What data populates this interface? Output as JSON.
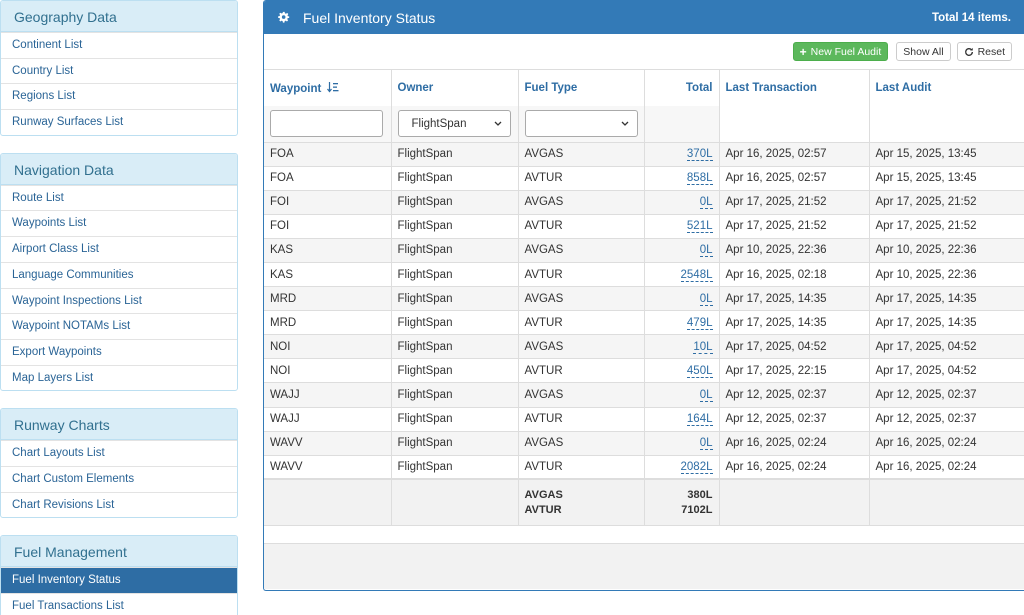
{
  "sidebar": {
    "geography": {
      "heading": "Geography Data",
      "items": [
        "Continent List",
        "Country List",
        "Regions List",
        "Runway Surfaces List"
      ]
    },
    "navigation": {
      "heading": "Navigation Data",
      "items": [
        "Route List",
        "Waypoints List",
        "Airport Class List",
        "Language Communities",
        "Waypoint Inspections List",
        "Waypoint NOTAMs List",
        "Export Waypoints",
        "Map Layers List"
      ]
    },
    "runway": {
      "heading": "Runway Charts",
      "items": [
        "Chart Layouts List",
        "Chart Custom Elements",
        "Chart Revisions List"
      ]
    },
    "fuel": {
      "heading": "Fuel Management",
      "items": [
        "Fuel Inventory Status",
        "Fuel Transactions List"
      ]
    }
  },
  "main": {
    "title": "Fuel Inventory Status",
    "total": "Total 14 items.",
    "toolbar": {
      "new_audit": "New Fuel Audit",
      "show_all": "Show All",
      "reset": "Reset"
    },
    "columns": {
      "waypoint": "Waypoint",
      "owner": "Owner",
      "fuel_type": "Fuel Type",
      "total": "Total",
      "last_transaction": "Last Transaction",
      "last_audit": "Last Audit"
    },
    "filters": {
      "owner_selected": "FlightSpan"
    },
    "rows": [
      {
        "waypoint": "FOA",
        "owner": "FlightSpan",
        "fuel_type": "AVGAS",
        "total": "370L",
        "last_transaction": "Apr 16, 2025, 02:57",
        "last_audit": "Apr 15, 2025, 13:45"
      },
      {
        "waypoint": "FOA",
        "owner": "FlightSpan",
        "fuel_type": "AVTUR",
        "total": "858L",
        "last_transaction": "Apr 16, 2025, 02:57",
        "last_audit": "Apr 15, 2025, 13:45"
      },
      {
        "waypoint": "FOI",
        "owner": "FlightSpan",
        "fuel_type": "AVGAS",
        "total": "0L",
        "last_transaction": "Apr 17, 2025, 21:52",
        "last_audit": "Apr 17, 2025, 21:52"
      },
      {
        "waypoint": "FOI",
        "owner": "FlightSpan",
        "fuel_type": "AVTUR",
        "total": "521L",
        "last_transaction": "Apr 17, 2025, 21:52",
        "last_audit": "Apr 17, 2025, 21:52"
      },
      {
        "waypoint": "KAS",
        "owner": "FlightSpan",
        "fuel_type": "AVGAS",
        "total": "0L",
        "last_transaction": "Apr 10, 2025, 22:36",
        "last_audit": "Apr 10, 2025, 22:36"
      },
      {
        "waypoint": "KAS",
        "owner": "FlightSpan",
        "fuel_type": "AVTUR",
        "total": "2548L",
        "last_transaction": "Apr 16, 2025, 02:18",
        "last_audit": "Apr 10, 2025, 22:36"
      },
      {
        "waypoint": "MRD",
        "owner": "FlightSpan",
        "fuel_type": "AVGAS",
        "total": "0L",
        "last_transaction": "Apr 17, 2025, 14:35",
        "last_audit": "Apr 17, 2025, 14:35"
      },
      {
        "waypoint": "MRD",
        "owner": "FlightSpan",
        "fuel_type": "AVTUR",
        "total": "479L",
        "last_transaction": "Apr 17, 2025, 14:35",
        "last_audit": "Apr 17, 2025, 14:35"
      },
      {
        "waypoint": "NOI",
        "owner": "FlightSpan",
        "fuel_type": "AVGAS",
        "total": "10L",
        "last_transaction": "Apr 17, 2025, 04:52",
        "last_audit": "Apr 17, 2025, 04:52"
      },
      {
        "waypoint": "NOI",
        "owner": "FlightSpan",
        "fuel_type": "AVTUR",
        "total": "450L",
        "last_transaction": "Apr 17, 2025, 22:15",
        "last_audit": "Apr 17, 2025, 04:52"
      },
      {
        "waypoint": "WAJJ",
        "owner": "FlightSpan",
        "fuel_type": "AVGAS",
        "total": "0L",
        "last_transaction": "Apr 12, 2025, 02:37",
        "last_audit": "Apr 12, 2025, 02:37"
      },
      {
        "waypoint": "WAJJ",
        "owner": "FlightSpan",
        "fuel_type": "AVTUR",
        "total": "164L",
        "last_transaction": "Apr 12, 2025, 02:37",
        "last_audit": "Apr 12, 2025, 02:37"
      },
      {
        "waypoint": "WAVV",
        "owner": "FlightSpan",
        "fuel_type": "AVGAS",
        "total": "0L",
        "last_transaction": "Apr 16, 2025, 02:24",
        "last_audit": "Apr 16, 2025, 02:24"
      },
      {
        "waypoint": "WAVV",
        "owner": "FlightSpan",
        "fuel_type": "AVTUR",
        "total": "2082L",
        "last_transaction": "Apr 16, 2025, 02:24",
        "last_audit": "Apr 16, 2025, 02:24"
      }
    ],
    "summary": [
      {
        "fuel_type": "AVGAS",
        "total": "380L"
      },
      {
        "fuel_type": "AVTUR",
        "total": "7102L"
      }
    ]
  },
  "colors": {
    "header_blue": "#337ab7",
    "sidebar_heading_bg": "#d9edf7",
    "sidebar_heading_text": "#31708f",
    "link": "#2e6da4",
    "success": "#5cb85c"
  },
  "icons": {
    "header": "gear-icon",
    "sort": "sort-alpha-down-icon",
    "new_audit": "plus-icon",
    "reset": "refresh-icon",
    "select": "chevron-down-icon"
  }
}
